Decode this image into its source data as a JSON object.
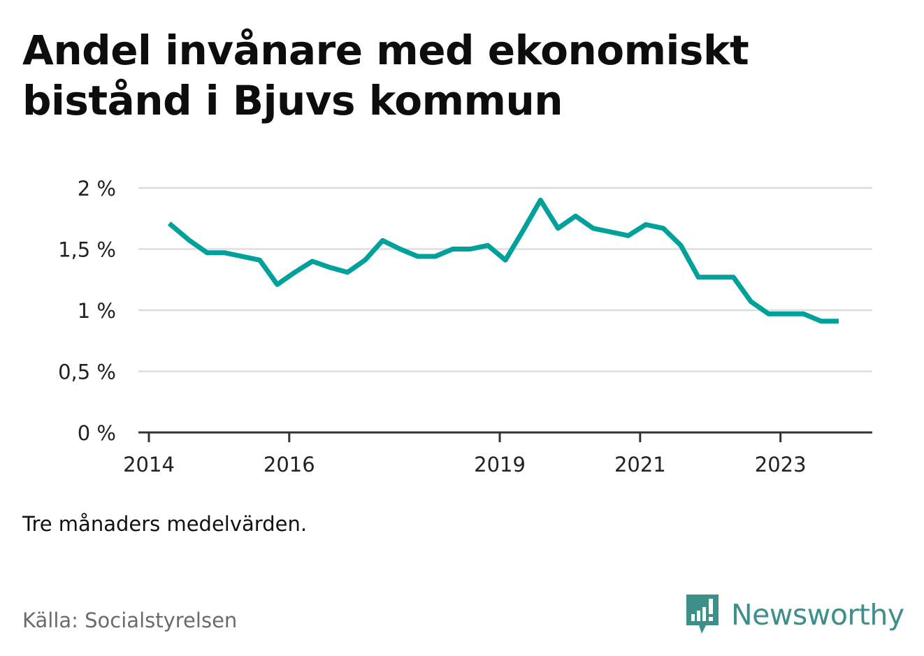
{
  "title": "Andel invånare med ekonomiskt bistånd i Bjuvs kommun",
  "note": "Tre månaders medelvärden.",
  "source": "Källa: Socialstyrelsen",
  "brand": {
    "name": "Newsworthy",
    "icon": "bar-chart-speech-bubble-icon",
    "color": "#3d8f8a"
  },
  "colors": {
    "line": "#00a19a",
    "grid": "#dddddd",
    "axis": "#333333"
  },
  "chart_data": {
    "type": "line",
    "title": "Andel invånare med ekonomiskt bistånd i Bjuvs kommun",
    "xlabel": "",
    "ylabel": "",
    "ylim": [
      0,
      2
    ],
    "yticks": [
      0,
      0.5,
      1,
      1.5,
      2
    ],
    "ytick_labels": [
      "0 %",
      "0,5 %",
      "1 %",
      "1,5 %",
      "2 %"
    ],
    "xlim": [
      2014.0,
      2024.33
    ],
    "xticks": [
      2014,
      2016,
      2019,
      2021,
      2023
    ],
    "xtick_labels": [
      "2014",
      "2016",
      "2019",
      "2021",
      "2023"
    ],
    "grid": true,
    "legend": "none",
    "series": [
      {
        "x": [
          2014.29,
          2014.58,
          2014.83,
          2015.08,
          2015.33,
          2015.58,
          2015.83,
          2016.08,
          2016.33,
          2016.58,
          2016.83,
          2017.08,
          2017.33,
          2017.58,
          2017.83,
          2018.08,
          2018.33,
          2018.58,
          2018.83,
          2019.08,
          2019.33,
          2019.58,
          2019.83,
          2020.08,
          2020.33,
          2020.58,
          2020.83,
          2021.08,
          2021.33,
          2021.58,
          2021.83,
          2022.08,
          2022.33,
          2022.58,
          2022.83,
          2023.08,
          2023.33,
          2023.58,
          2023.83
        ],
        "values": [
          1.71,
          1.57,
          1.47,
          1.47,
          1.44,
          1.41,
          1.21,
          1.31,
          1.4,
          1.35,
          1.31,
          1.41,
          1.57,
          1.5,
          1.44,
          1.44,
          1.5,
          1.5,
          1.53,
          1.41,
          1.65,
          1.9,
          1.67,
          1.77,
          1.67,
          1.64,
          1.61,
          1.7,
          1.67,
          1.53,
          1.27,
          1.27,
          1.27,
          1.07,
          0.97,
          0.97,
          0.97,
          0.91,
          0.91
        ]
      }
    ]
  }
}
